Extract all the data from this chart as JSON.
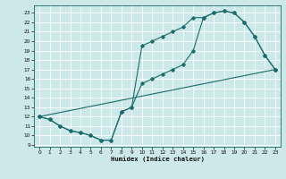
{
  "xlabel": "Humidex (Indice chaleur)",
  "bg_color": "#cde8e8",
  "grid_color": "#b0d4d4",
  "line_color": "#1a6b6b",
  "xlim": [
    -0.5,
    23.5
  ],
  "ylim": [
    8.8,
    23.8
  ],
  "xticks": [
    0,
    1,
    2,
    3,
    4,
    5,
    6,
    7,
    8,
    9,
    10,
    11,
    12,
    13,
    14,
    15,
    16,
    17,
    18,
    19,
    20,
    21,
    22,
    23
  ],
  "yticks": [
    9,
    10,
    11,
    12,
    13,
    14,
    15,
    16,
    17,
    18,
    19,
    20,
    21,
    22,
    23
  ],
  "curve1_x": [
    0,
    1,
    2,
    3,
    4,
    5,
    6,
    7,
    8,
    9,
    10,
    11,
    12,
    13,
    14,
    15,
    16,
    17,
    18,
    19,
    20,
    21,
    22,
    23
  ],
  "curve1_y": [
    12,
    11.7,
    11,
    10.5,
    10.3,
    10,
    9.5,
    9.5,
    12.5,
    13,
    19.5,
    20,
    20.5,
    21,
    21.5,
    22.5,
    22.5,
    23,
    23.2,
    23,
    22,
    20.5,
    18.5,
    17
  ],
  "curve2_x": [
    0,
    1,
    2,
    3,
    4,
    5,
    6,
    7,
    8,
    9,
    10,
    11,
    12,
    13,
    14,
    15,
    16,
    17,
    18,
    19,
    20,
    21,
    22,
    23
  ],
  "curve2_y": [
    12,
    11.7,
    11,
    10.5,
    10.3,
    10,
    9.5,
    9.5,
    12.5,
    13,
    15.5,
    16,
    16.5,
    17,
    17.5,
    19,
    22.5,
    23,
    23.2,
    23,
    22,
    20.5,
    18.5,
    17
  ],
  "curve3_x": [
    0,
    23
  ],
  "curve3_y": [
    12,
    17
  ]
}
